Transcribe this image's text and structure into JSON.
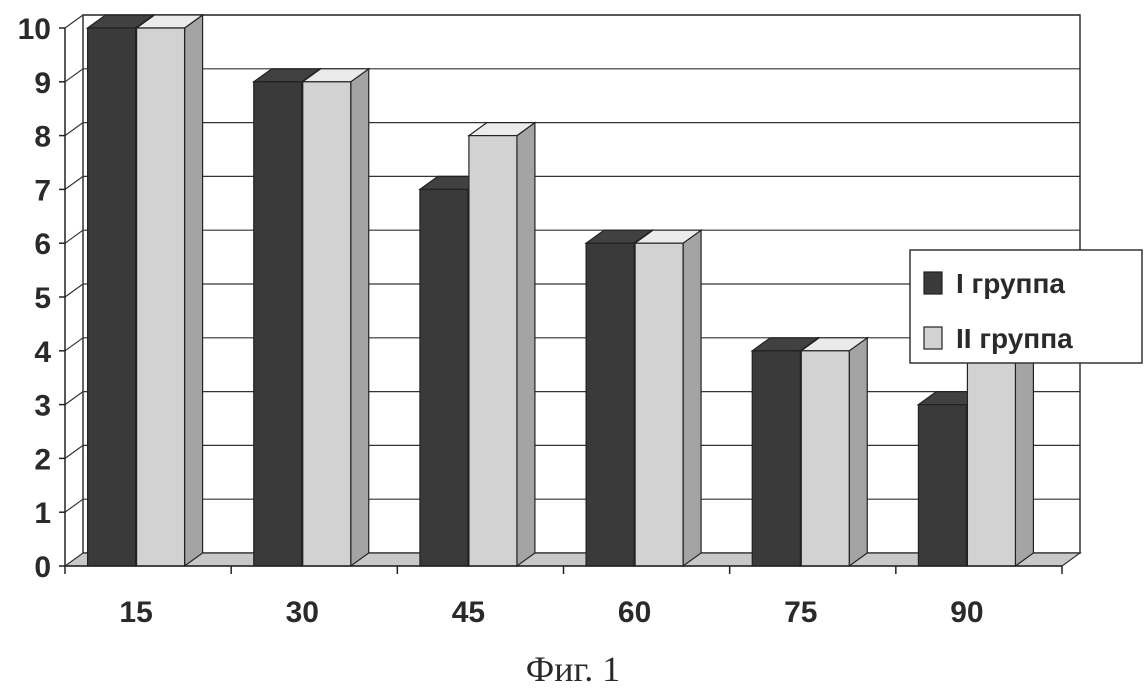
{
  "figure": {
    "caption": "Фиг. 1"
  },
  "chart_data": {
    "type": "bar",
    "categories": [
      "15",
      "30",
      "45",
      "60",
      "75",
      "90"
    ],
    "series": [
      {
        "name": "I группа",
        "values": [
          10,
          9,
          7,
          6,
          4,
          3
        ],
        "color": "#3a3a3a"
      },
      {
        "name": "II группа",
        "values": [
          10,
          9,
          8,
          6,
          4,
          4
        ],
        "color": "#d2d2d2"
      }
    ],
    "title": "",
    "xlabel": "",
    "ylabel": "",
    "ylim": [
      0,
      10
    ],
    "yticks": [
      "0",
      "1",
      "2",
      "3",
      "4",
      "5",
      "6",
      "7",
      "8",
      "9",
      "10"
    ],
    "grid": true,
    "legend_position": "right",
    "style": "3d-columns"
  }
}
